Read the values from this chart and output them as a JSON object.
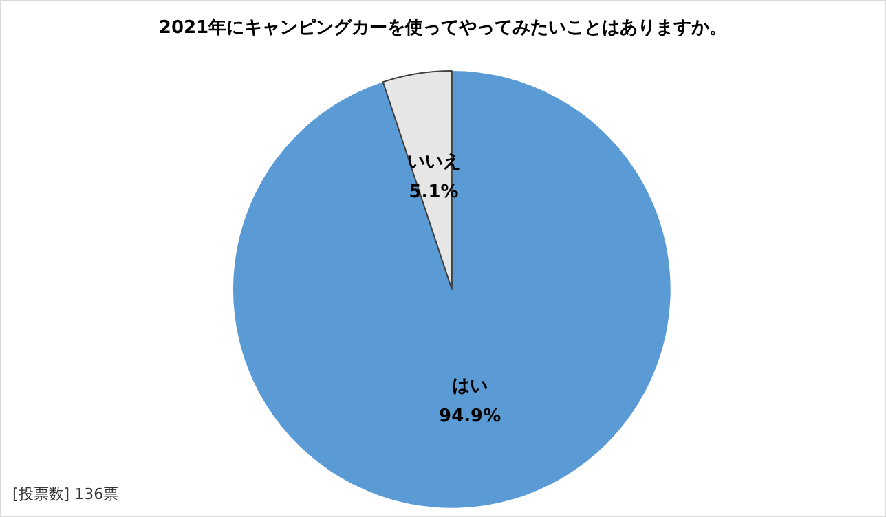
{
  "chart_data": {
    "type": "pie",
    "title": "2021年にキャンピングカーを使ってやってみたいことはありますか。",
    "categories": [
      "はい",
      "いいえ"
    ],
    "values": [
      94.9,
      5.1
    ],
    "value_labels": [
      "94.9%",
      "5.1%"
    ],
    "colors": [
      "#5b9bd5",
      "#e7e6e6"
    ],
    "annotations": [
      "[投票数] 136票"
    ],
    "legend": false
  }
}
